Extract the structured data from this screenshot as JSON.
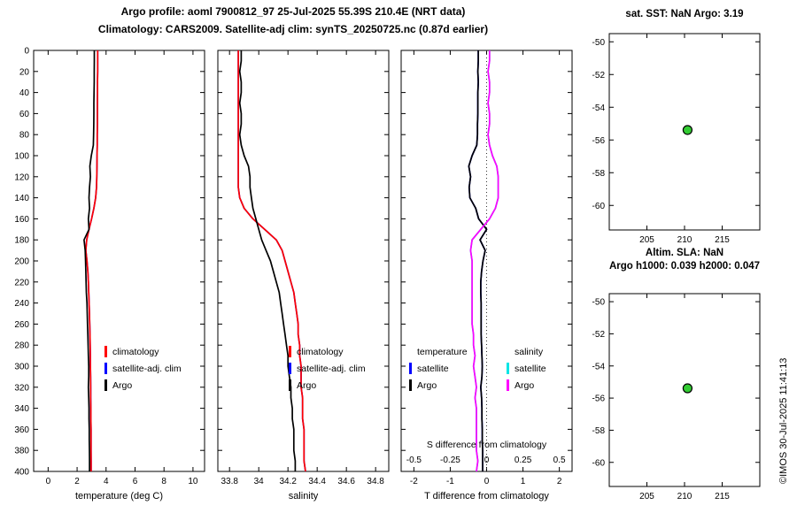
{
  "titles": {
    "line1": "Argo profile: aoml 7900812_97 25-Jul-2025 55.39S 210.4E (NRT data)",
    "line2": "Climatology: CARS2009. Satellite-adj clim: synTS_20250725.nc (0.87d earlier)"
  },
  "credit": "©IMOS 30-Jul-2025 11:41:13",
  "legend_profile": {
    "items": [
      {
        "label": "climatology",
        "color": "#ff0000"
      },
      {
        "label": "satellite-adj. clim",
        "color": "#0000ff"
      },
      {
        "label": "Argo",
        "color": "#000000"
      }
    ]
  },
  "legend_diff": {
    "temp_header": "temperature",
    "sal_header": "salinity",
    "temp_items": [
      {
        "label": "satellite",
        "color": "#0000ff"
      },
      {
        "label": "Argo",
        "color": "#000000"
      }
    ],
    "sal_items": [
      {
        "label": "satellite",
        "color": "#00e5e5"
      },
      {
        "label": "Argo",
        "color": "#ff00ff"
      }
    ]
  },
  "chart_data": [
    {
      "type": "line",
      "panel": "temperature-profile",
      "xlabel": "temperature (deg C)",
      "xlim": [
        -1,
        10.8
      ],
      "x_ticks": [
        0,
        2,
        4,
        6,
        8,
        10
      ],
      "ylim": [
        0,
        400
      ],
      "y_direction": "down",
      "y_ticks": [
        0,
        20,
        40,
        60,
        80,
        100,
        120,
        140,
        160,
        180,
        200,
        220,
        240,
        260,
        280,
        300,
        320,
        340,
        360,
        380,
        400
      ],
      "depths_m": [
        0,
        10,
        20,
        30,
        40,
        50,
        60,
        70,
        80,
        90,
        100,
        110,
        120,
        130,
        140,
        150,
        160,
        170,
        180,
        190,
        200,
        210,
        220,
        230,
        240,
        250,
        260,
        270,
        280,
        290,
        300,
        310,
        320,
        330,
        340,
        350,
        360,
        370,
        380,
        390,
        400
      ],
      "series": [
        {
          "name": "satellite-adj. clim",
          "color": "#0000ff",
          "values": "same-as-climatology"
        },
        {
          "name": "climatology",
          "color": "#ff0000",
          "values": [
            3.42,
            3.42,
            3.42,
            3.41,
            3.41,
            3.4,
            3.4,
            3.4,
            3.39,
            3.39,
            3.38,
            3.37,
            3.36,
            3.34,
            3.28,
            3.16,
            3.0,
            2.82,
            2.66,
            2.6,
            2.68,
            2.74,
            2.78,
            2.8,
            2.83,
            2.85,
            2.87,
            2.89,
            2.9,
            2.91,
            2.92,
            2.93,
            2.94,
            2.94,
            2.95,
            2.95,
            2.96,
            2.96,
            2.96,
            2.97,
            2.97
          ]
        },
        {
          "name": "Argo",
          "color": "#000000",
          "values": [
            3.19,
            3.19,
            3.18,
            3.18,
            3.17,
            3.16,
            3.16,
            3.15,
            3.14,
            3.12,
            2.98,
            2.88,
            2.92,
            2.86,
            2.82,
            2.86,
            2.78,
            2.82,
            2.48,
            2.56,
            2.58,
            2.6,
            2.62,
            2.64,
            2.68,
            2.7,
            2.72,
            2.74,
            2.76,
            2.78,
            2.8,
            2.8,
            2.78,
            2.8,
            2.82,
            2.82,
            2.84,
            2.84,
            2.85,
            2.86,
            2.86
          ]
        }
      ]
    },
    {
      "type": "line",
      "panel": "salinity-profile",
      "xlabel": "salinity",
      "xlim": [
        33.72,
        34.89
      ],
      "x_ticks": [
        33.8,
        34,
        34.2,
        34.4,
        34.6,
        34.8
      ],
      "ylim": [
        0,
        400
      ],
      "y_direction": "down",
      "y_ticks": [
        0,
        20,
        40,
        60,
        80,
        100,
        120,
        140,
        160,
        180,
        200,
        220,
        240,
        260,
        280,
        300,
        320,
        340,
        360,
        380,
        400
      ],
      "depths_m": [
        0,
        10,
        20,
        30,
        40,
        50,
        60,
        70,
        80,
        90,
        100,
        110,
        120,
        130,
        140,
        150,
        160,
        170,
        180,
        190,
        200,
        210,
        220,
        230,
        240,
        250,
        260,
        270,
        280,
        290,
        300,
        310,
        320,
        330,
        340,
        350,
        360,
        370,
        380,
        390,
        400
      ],
      "series": [
        {
          "name": "satellite-adj. clim",
          "color": "#0000ff",
          "values": "same-as-climatology"
        },
        {
          "name": "climatology",
          "color": "#ff0000",
          "values": [
            33.86,
            33.86,
            33.86,
            33.86,
            33.86,
            33.86,
            33.86,
            33.86,
            33.86,
            33.86,
            33.86,
            33.86,
            33.86,
            33.86,
            33.87,
            33.9,
            33.96,
            34.04,
            34.12,
            34.16,
            34.18,
            34.2,
            34.22,
            34.24,
            34.25,
            34.26,
            34.27,
            34.27,
            34.28,
            34.28,
            34.29,
            34.29,
            34.29,
            34.3,
            34.3,
            34.3,
            34.31,
            34.31,
            34.31,
            34.31,
            34.32
          ]
        },
        {
          "name": "Argo",
          "color": "#000000",
          "values": [
            33.88,
            33.88,
            33.87,
            33.88,
            33.88,
            33.87,
            33.88,
            33.88,
            33.87,
            33.88,
            33.9,
            33.93,
            33.94,
            33.94,
            33.95,
            33.96,
            33.98,
            34.0,
            34.02,
            34.05,
            34.08,
            34.1,
            34.12,
            34.14,
            34.15,
            34.16,
            34.17,
            34.18,
            34.19,
            34.2,
            34.2,
            34.21,
            34.22,
            34.22,
            34.23,
            34.23,
            34.24,
            34.24,
            34.24,
            34.25,
            34.25
          ]
        }
      ]
    },
    {
      "type": "line",
      "panel": "difference-profile",
      "xlabel": "T difference from climatology",
      "x2label": "S difference from climatology",
      "xlim": [
        -2.35,
        2.35
      ],
      "x_ticks": [
        -2,
        -1,
        0,
        1,
        2
      ],
      "x2lim": [
        -0.5875,
        0.5875
      ],
      "x2_ticks": [
        -0.5,
        -0.25,
        0,
        0.25,
        0.5
      ],
      "zero_line": true,
      "ylim": [
        0,
        400
      ],
      "y_direction": "down",
      "y_ticks": [
        0,
        20,
        40,
        60,
        80,
        100,
        120,
        140,
        160,
        180,
        200,
        220,
        240,
        260,
        280,
        300,
        320,
        340,
        360,
        380,
        400
      ],
      "depths_m": [
        0,
        10,
        20,
        30,
        40,
        50,
        60,
        70,
        80,
        90,
        100,
        110,
        120,
        130,
        140,
        150,
        160,
        170,
        180,
        190,
        200,
        210,
        220,
        230,
        240,
        250,
        260,
        270,
        280,
        290,
        300,
        310,
        320,
        330,
        340,
        350,
        360,
        370,
        380,
        390,
        400
      ],
      "series": [
        {
          "name": "T satellite",
          "color": "#0000ff",
          "axis": "t",
          "values": "same-as-T Argo"
        },
        {
          "name": "T Argo",
          "color": "#000000",
          "axis": "t",
          "values": [
            -0.23,
            -0.23,
            -0.24,
            -0.23,
            -0.24,
            -0.24,
            -0.24,
            -0.25,
            -0.25,
            -0.27,
            -0.4,
            -0.49,
            -0.44,
            -0.48,
            -0.46,
            -0.3,
            -0.22,
            0.0,
            -0.18,
            -0.04,
            -0.1,
            -0.14,
            -0.16,
            -0.16,
            -0.15,
            -0.15,
            -0.15,
            -0.15,
            -0.14,
            -0.13,
            -0.12,
            -0.13,
            -0.16,
            -0.14,
            -0.13,
            -0.13,
            -0.12,
            -0.12,
            -0.11,
            -0.11,
            -0.11
          ]
        },
        {
          "name": "S satellite",
          "color": "#00e5e5",
          "axis": "s",
          "values": "same-as-S Argo"
        },
        {
          "name": "S Argo",
          "color": "#ff00ff",
          "axis": "s",
          "values": [
            0.02,
            0.02,
            0.01,
            0.02,
            0.02,
            0.01,
            0.02,
            0.02,
            0.01,
            0.02,
            0.04,
            0.07,
            0.08,
            0.08,
            0.08,
            0.06,
            0.02,
            -0.04,
            -0.1,
            -0.11,
            -0.1,
            -0.1,
            -0.1,
            -0.1,
            -0.1,
            -0.1,
            -0.1,
            -0.09,
            -0.09,
            -0.08,
            -0.09,
            -0.08,
            -0.07,
            -0.08,
            -0.07,
            -0.07,
            -0.07,
            -0.07,
            -0.07,
            -0.06,
            -0.07
          ]
        }
      ]
    },
    {
      "type": "scatter",
      "panel": "sst-map",
      "title": "sat. SST: NaN Argo: 3.19",
      "values": {
        "sat_sst": "NaN",
        "argo_sst": 3.19
      },
      "xlim": [
        200,
        220
      ],
      "x_ticks": [
        205,
        210,
        215
      ],
      "ylim": [
        -61.5,
        -49.5
      ],
      "y_ticks": [
        -60,
        -58,
        -56,
        -54,
        -52,
        -50
      ],
      "points": [
        {
          "lon": 210.4,
          "lat": -55.39
        }
      ],
      "marker": {
        "shape": "circle",
        "fill": "#33cc33",
        "edge": "#000000",
        "radius": 5
      }
    },
    {
      "type": "scatter",
      "panel": "sla-map",
      "title_line1": "Altim. SLA: NaN",
      "title_line2": "Argo h1000: 0.039 h2000: 0.047",
      "values": {
        "altim_sla": "NaN",
        "argo_h1000": 0.039,
        "argo_h2000": 0.047
      },
      "xlim": [
        200,
        220
      ],
      "x_ticks": [
        205,
        210,
        215
      ],
      "ylim": [
        -61.5,
        -49.5
      ],
      "y_ticks": [
        -60,
        -58,
        -56,
        -54,
        -52,
        -50
      ],
      "points": [
        {
          "lon": 210.4,
          "lat": -55.39
        }
      ],
      "marker": {
        "shape": "circle",
        "fill": "#33cc33",
        "edge": "#000000",
        "radius": 5
      }
    }
  ]
}
